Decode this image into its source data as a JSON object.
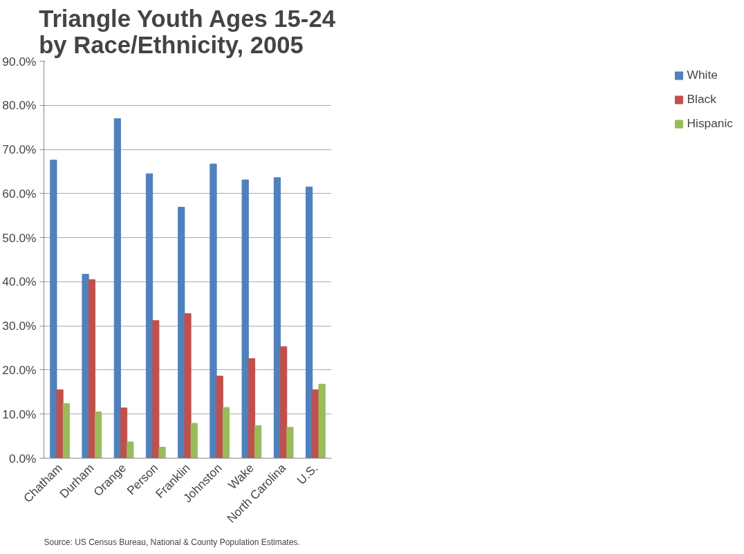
{
  "chart_data": {
    "type": "bar",
    "title": "Triangle Youth Ages 15-24 by Race/Ethnicity, 2005",
    "categories": [
      "Chatham",
      "Durham",
      "Orange",
      "Person",
      "Franklin",
      "Johnston",
      "Wake",
      "North Carolina",
      "U.S."
    ],
    "series": [
      {
        "name": "White",
        "color": "#4f81bd",
        "values": [
          67.6,
          41.7,
          77.0,
          64.5,
          56.9,
          66.7,
          63.1,
          63.6,
          61.5
        ]
      },
      {
        "name": "Black",
        "color": "#c0504d",
        "values": [
          15.5,
          40.5,
          11.4,
          31.2,
          32.8,
          18.6,
          22.6,
          25.3,
          15.5
        ]
      },
      {
        "name": "Hispanic",
        "color": "#9bbb59",
        "values": [
          12.4,
          10.5,
          3.7,
          2.5,
          7.9,
          11.5,
          7.4,
          7.0,
          16.8
        ]
      }
    ],
    "ylim": [
      0,
      90
    ],
    "yticks": [
      {
        "value": 0,
        "label": "0.0%"
      },
      {
        "value": 10,
        "label": "10.0%"
      },
      {
        "value": 20,
        "label": "20.0%"
      },
      {
        "value": 30,
        "label": "30.0%"
      },
      {
        "value": 40,
        "label": "40.0%"
      },
      {
        "value": 50,
        "label": "50.0%"
      },
      {
        "value": 60,
        "label": "60.0%"
      },
      {
        "value": 70,
        "label": "70.0%"
      },
      {
        "value": 80,
        "label": "80.0%"
      },
      {
        "value": 90,
        "label": "90.0%"
      }
    ],
    "grid": "y",
    "legend": "right",
    "annotations": [
      "Source: US Census Bureau, National & County Population Estimates."
    ]
  }
}
